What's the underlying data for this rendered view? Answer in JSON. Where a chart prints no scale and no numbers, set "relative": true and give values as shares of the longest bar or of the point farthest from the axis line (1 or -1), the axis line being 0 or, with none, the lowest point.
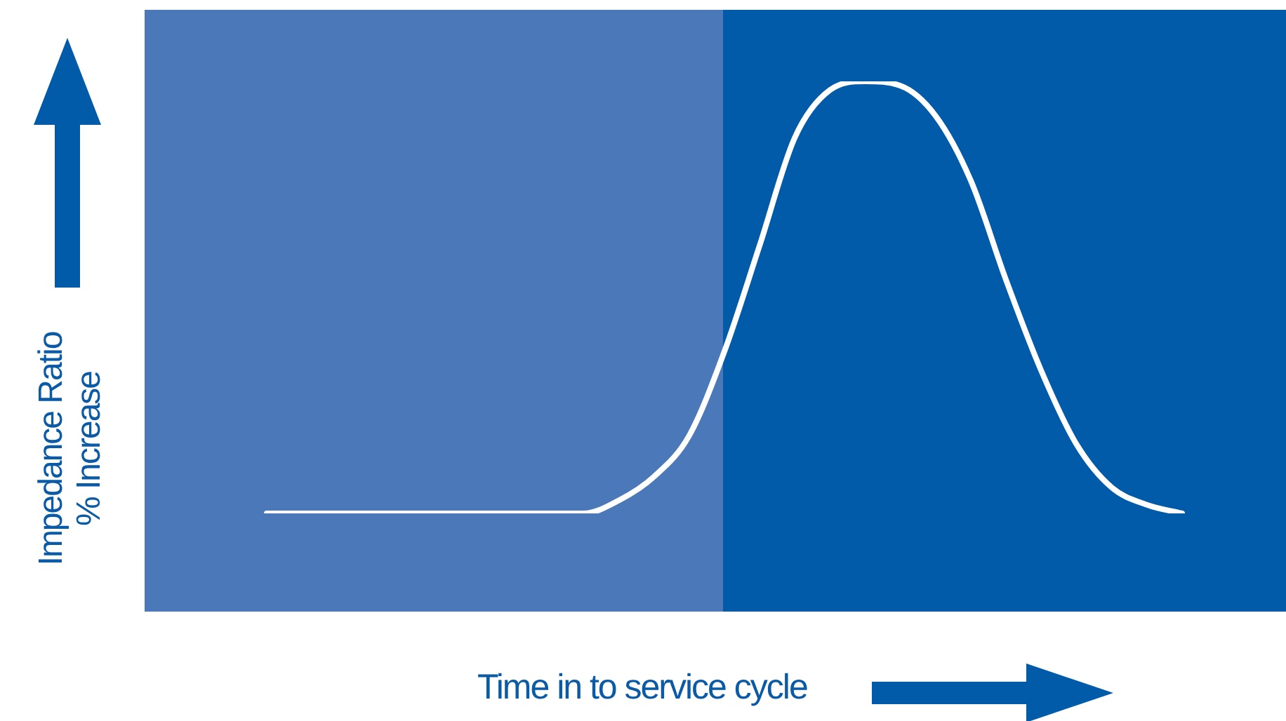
{
  "chart_data": {
    "type": "line",
    "relative": true,
    "xlabel": "Time in to service cycle",
    "ylabel": "Impedance Ratio\n% Increase",
    "categories": [
      null,
      null,
      null,
      null,
      null,
      null,
      null,
      null,
      null,
      null,
      null,
      null,
      null,
      null,
      null,
      null,
      null,
      null,
      null,
      null,
      null,
      null,
      null,
      null,
      null,
      null,
      null
    ],
    "series": [
      {
        "color": "#ffffff",
        "values": [
          0,
          0,
          0,
          0,
          0,
          0,
          0,
          0,
          0,
          0,
          0.03,
          0.085,
          0.18,
          0.375,
          0.62,
          0.87,
          0.98,
          1,
          0.99,
          0.92,
          0.77,
          0.54,
          0.33,
          0.16,
          0.06,
          0.02,
          0
        ]
      }
    ],
    "marker": "none",
    "line_style": "solid",
    "legend": false
  }
}
